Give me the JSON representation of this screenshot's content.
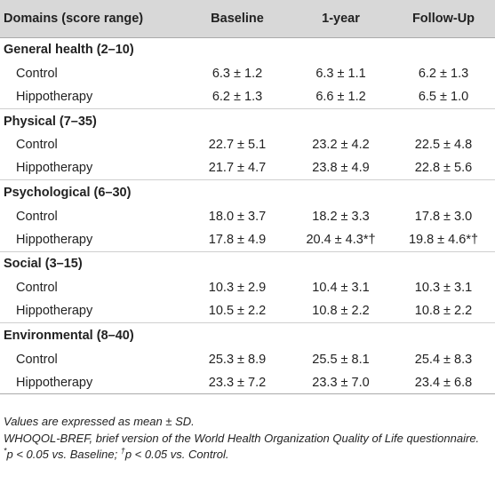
{
  "header": {
    "col_domains": "Domains (score range)",
    "col_baseline": "Baseline",
    "col_1year": "1-year",
    "col_followup": "Follow-Up"
  },
  "sections": [
    {
      "title": "General health (2–10)",
      "rows": [
        {
          "label": "Control",
          "baseline": "6.3 ± 1.2",
          "year1": "6.3 ± 1.1",
          "followup": "6.2 ± 1.3"
        },
        {
          "label": "Hippotherapy",
          "baseline": "6.2 ± 1.3",
          "year1": "6.6 ± 1.2",
          "followup": "6.5 ± 1.0"
        }
      ]
    },
    {
      "title": "Physical (7–35)",
      "rows": [
        {
          "label": "Control",
          "baseline": "22.7 ± 5.1",
          "year1": "23.2 ± 4.2",
          "followup": "22.5 ± 4.8"
        },
        {
          "label": "Hippotherapy",
          "baseline": "21.7 ± 4.7",
          "year1": "23.8 ± 4.9",
          "followup": "22.8 ± 5.6"
        }
      ]
    },
    {
      "title": "Psychological (6–30)",
      "rows": [
        {
          "label": "Control",
          "baseline": "18.0 ± 3.7",
          "year1": "18.2 ± 3.3",
          "followup": "17.8 ± 3.0"
        },
        {
          "label": "Hippotherapy",
          "baseline": "17.8 ± 4.9",
          "year1": "20.4 ± 4.3*†",
          "followup": "19.8 ± 4.6*†"
        }
      ]
    },
    {
      "title": "Social (3–15)",
      "rows": [
        {
          "label": "Control",
          "baseline": "10.3 ± 2.9",
          "year1": "10.4 ± 3.1",
          "followup": "10.3 ± 3.1"
        },
        {
          "label": "Hippotherapy",
          "baseline": "10.5 ± 2.2",
          "year1": "10.8 ± 2.2",
          "followup": "10.8 ± 2.2"
        }
      ]
    },
    {
      "title": "Environmental (8–40)",
      "rows": [
        {
          "label": "Control",
          "baseline": "25.3 ± 8.9",
          "year1": "25.5 ± 8.1",
          "followup": "25.4 ± 8.3"
        },
        {
          "label": "Hippotherapy",
          "baseline": "23.3 ± 7.2",
          "year1": "23.3 ± 7.0",
          "followup": "23.4 ± 6.8"
        }
      ]
    }
  ],
  "notes": {
    "note1": "Values are expressed as mean ± SD.",
    "note2": "WHOQOL-BREF, brief version of the World Health Organization Quality of Life questionnaire.",
    "note3_sym1": "*",
    "note3_text1": "p < 0.05 vs. Baseline; ",
    "note3_sym2": "†",
    "note3_text2": "p < 0.05 vs. Control."
  }
}
